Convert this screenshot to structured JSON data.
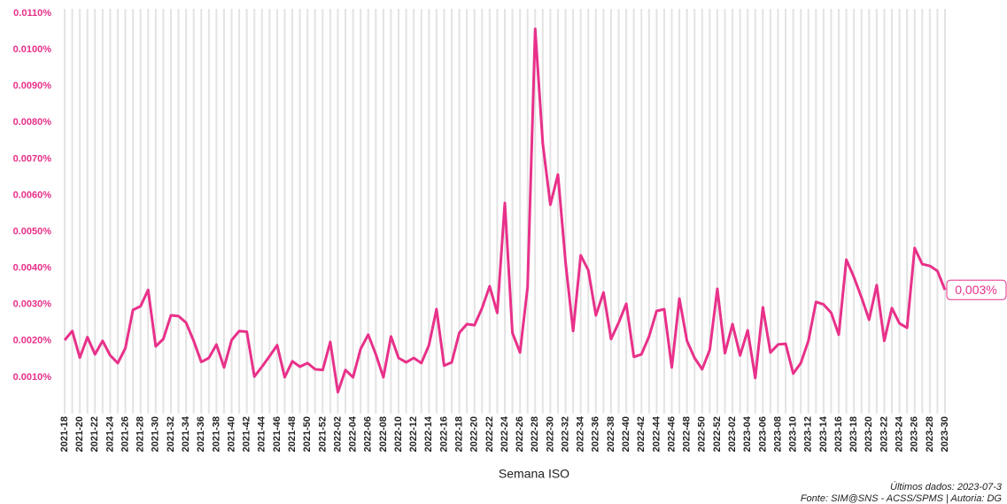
{
  "chart_data": {
    "type": "line",
    "x_label": "Semana ISO",
    "annotations": [
      "Últimos dados: 2023-07-3",
      "Fonte: SIM@SNS - ACSS/SPMS | Autoria: DG"
    ],
    "categories": [
      "2021-18",
      null,
      "2021-20",
      null,
      "2021-22",
      null,
      "2021-24",
      null,
      "2021-26",
      null,
      "2021-28",
      null,
      "2021-30",
      null,
      "2021-32",
      null,
      "2021-34",
      null,
      "2021-36",
      null,
      "2021-38",
      null,
      "2021-40",
      null,
      "2021-42",
      null,
      "2021-44",
      null,
      "2021-46",
      null,
      "2021-48",
      null,
      "2021-50",
      null,
      "2021-52",
      null,
      "2022-02",
      null,
      "2022-04",
      null,
      "2022-06",
      null,
      "2022-08",
      null,
      "2022-10",
      null,
      "2022-12",
      null,
      "2022-14",
      null,
      "2022-16",
      null,
      "2022-18",
      null,
      "2022-20",
      null,
      "2022-22",
      null,
      "2022-24",
      null,
      "2022-26",
      null,
      "2022-28",
      null,
      "2022-30",
      null,
      "2022-32",
      null,
      "2022-34",
      null,
      "2022-36",
      null,
      "2022-38",
      null,
      "2022-40",
      null,
      "2022-42",
      null,
      "2022-44",
      null,
      "2022-46",
      null,
      "2022-48",
      null,
      "2022-50",
      null,
      "2022-52",
      null,
      "2023-02",
      null,
      "2023-04",
      null,
      "2023-06",
      null,
      "2023-08",
      null,
      "2023-10",
      null,
      "2023-12",
      null,
      "2023-14",
      null,
      "2023-16",
      null,
      "2023-18",
      null,
      "2023-20",
      null,
      "2023-22",
      null,
      "2023-24",
      null,
      "2023-26",
      null,
      "2023-28",
      null,
      "2023-30"
    ],
    "series": [
      {
        "color": "#e8318a",
        "values": [
          0.00202,
          0.00227,
          0.00154,
          0.0021,
          0.00163,
          0.002,
          0.0016,
          0.00139,
          0.0018,
          0.00285,
          0.00295,
          0.0034,
          0.00185,
          0.00205,
          0.0027,
          0.00268,
          0.0025,
          0.002,
          0.00142,
          0.00153,
          0.0019,
          0.00127,
          0.00202,
          0.00227,
          0.00225,
          0.00102,
          0.00129,
          0.00158,
          0.00188,
          0.001,
          0.00144,
          0.00129,
          0.00139,
          0.00122,
          0.0012,
          0.00197,
          0.00059,
          0.0012,
          0.001,
          0.00178,
          0.00217,
          0.00163,
          0.001,
          0.00212,
          0.00153,
          0.00141,
          0.00153,
          0.00139,
          0.00188,
          0.00287,
          0.00132,
          0.00141,
          0.00222,
          0.00246,
          0.00243,
          0.0029,
          0.0035,
          0.00277,
          0.00579,
          0.00222,
          0.00168,
          0.00348,
          0.01057,
          0.00742,
          0.00574,
          0.00657,
          0.00416,
          0.00227,
          0.00435,
          0.00394,
          0.0027,
          0.00333,
          0.00205,
          0.0025,
          0.00302,
          0.00156,
          0.00163,
          0.00212,
          0.00282,
          0.00287,
          0.00127,
          0.00316,
          0.002,
          0.00153,
          0.00122,
          0.00175,
          0.00343,
          0.00166,
          0.00246,
          0.0016,
          0.00229,
          0.00098,
          0.00292,
          0.00168,
          0.0019,
          0.00192,
          0.0011,
          0.00139,
          0.002,
          0.00307,
          0.003,
          0.00277,
          0.00217,
          0.00423,
          0.00375,
          0.00319,
          0.00258,
          0.00353,
          0.002,
          0.0029,
          0.00248,
          0.00236,
          0.00455,
          0.00411,
          0.00406,
          0.00392,
          0.0034
        ],
        "value_labels": [
          null,
          null,
          null,
          null,
          null,
          null,
          null,
          null,
          null,
          null,
          null,
          null,
          null,
          null,
          null,
          null,
          null,
          null,
          null,
          null,
          null,
          null,
          null,
          null,
          null,
          null,
          null,
          null,
          null,
          null,
          null,
          null,
          null,
          null,
          null,
          null,
          null,
          null,
          null,
          null,
          null,
          null,
          null,
          null,
          null,
          null,
          null,
          null,
          null,
          null,
          null,
          null,
          null,
          null,
          null,
          null,
          null,
          null,
          null,
          null,
          null,
          null,
          null,
          null,
          null,
          null,
          null,
          null,
          null,
          null,
          null,
          null,
          null,
          null,
          null,
          null,
          null,
          null,
          null,
          null,
          null,
          null,
          null,
          null,
          null,
          null,
          null,
          null,
          null,
          null,
          null,
          null,
          null,
          null,
          null,
          null,
          null,
          null,
          null,
          null,
          null,
          null,
          null,
          null,
          null,
          null,
          null,
          null,
          null,
          null,
          null,
          null,
          null,
          null,
          null,
          null,
          "0,003%"
        ]
      }
    ],
    "ylim": [
      0,
      0.011
    ],
    "yticks": [
      {
        "value": 0.001,
        "label": "0.0010%"
      },
      {
        "value": 0.002,
        "label": "0.0020%"
      },
      {
        "value": 0.003,
        "label": "0.0030%"
      },
      {
        "value": 0.004,
        "label": "0.0040%"
      },
      {
        "value": 0.005,
        "label": "0.0050%"
      },
      {
        "value": 0.006,
        "label": "0.0060%"
      },
      {
        "value": 0.007,
        "label": "0.0070%"
      },
      {
        "value": 0.008,
        "label": "0.0080%"
      },
      {
        "value": 0.009,
        "label": "0.0090%"
      },
      {
        "value": 0.01,
        "label": "0.0100%"
      },
      {
        "value": 0.011,
        "label": "0.0110%"
      }
    ],
    "grid": true
  }
}
